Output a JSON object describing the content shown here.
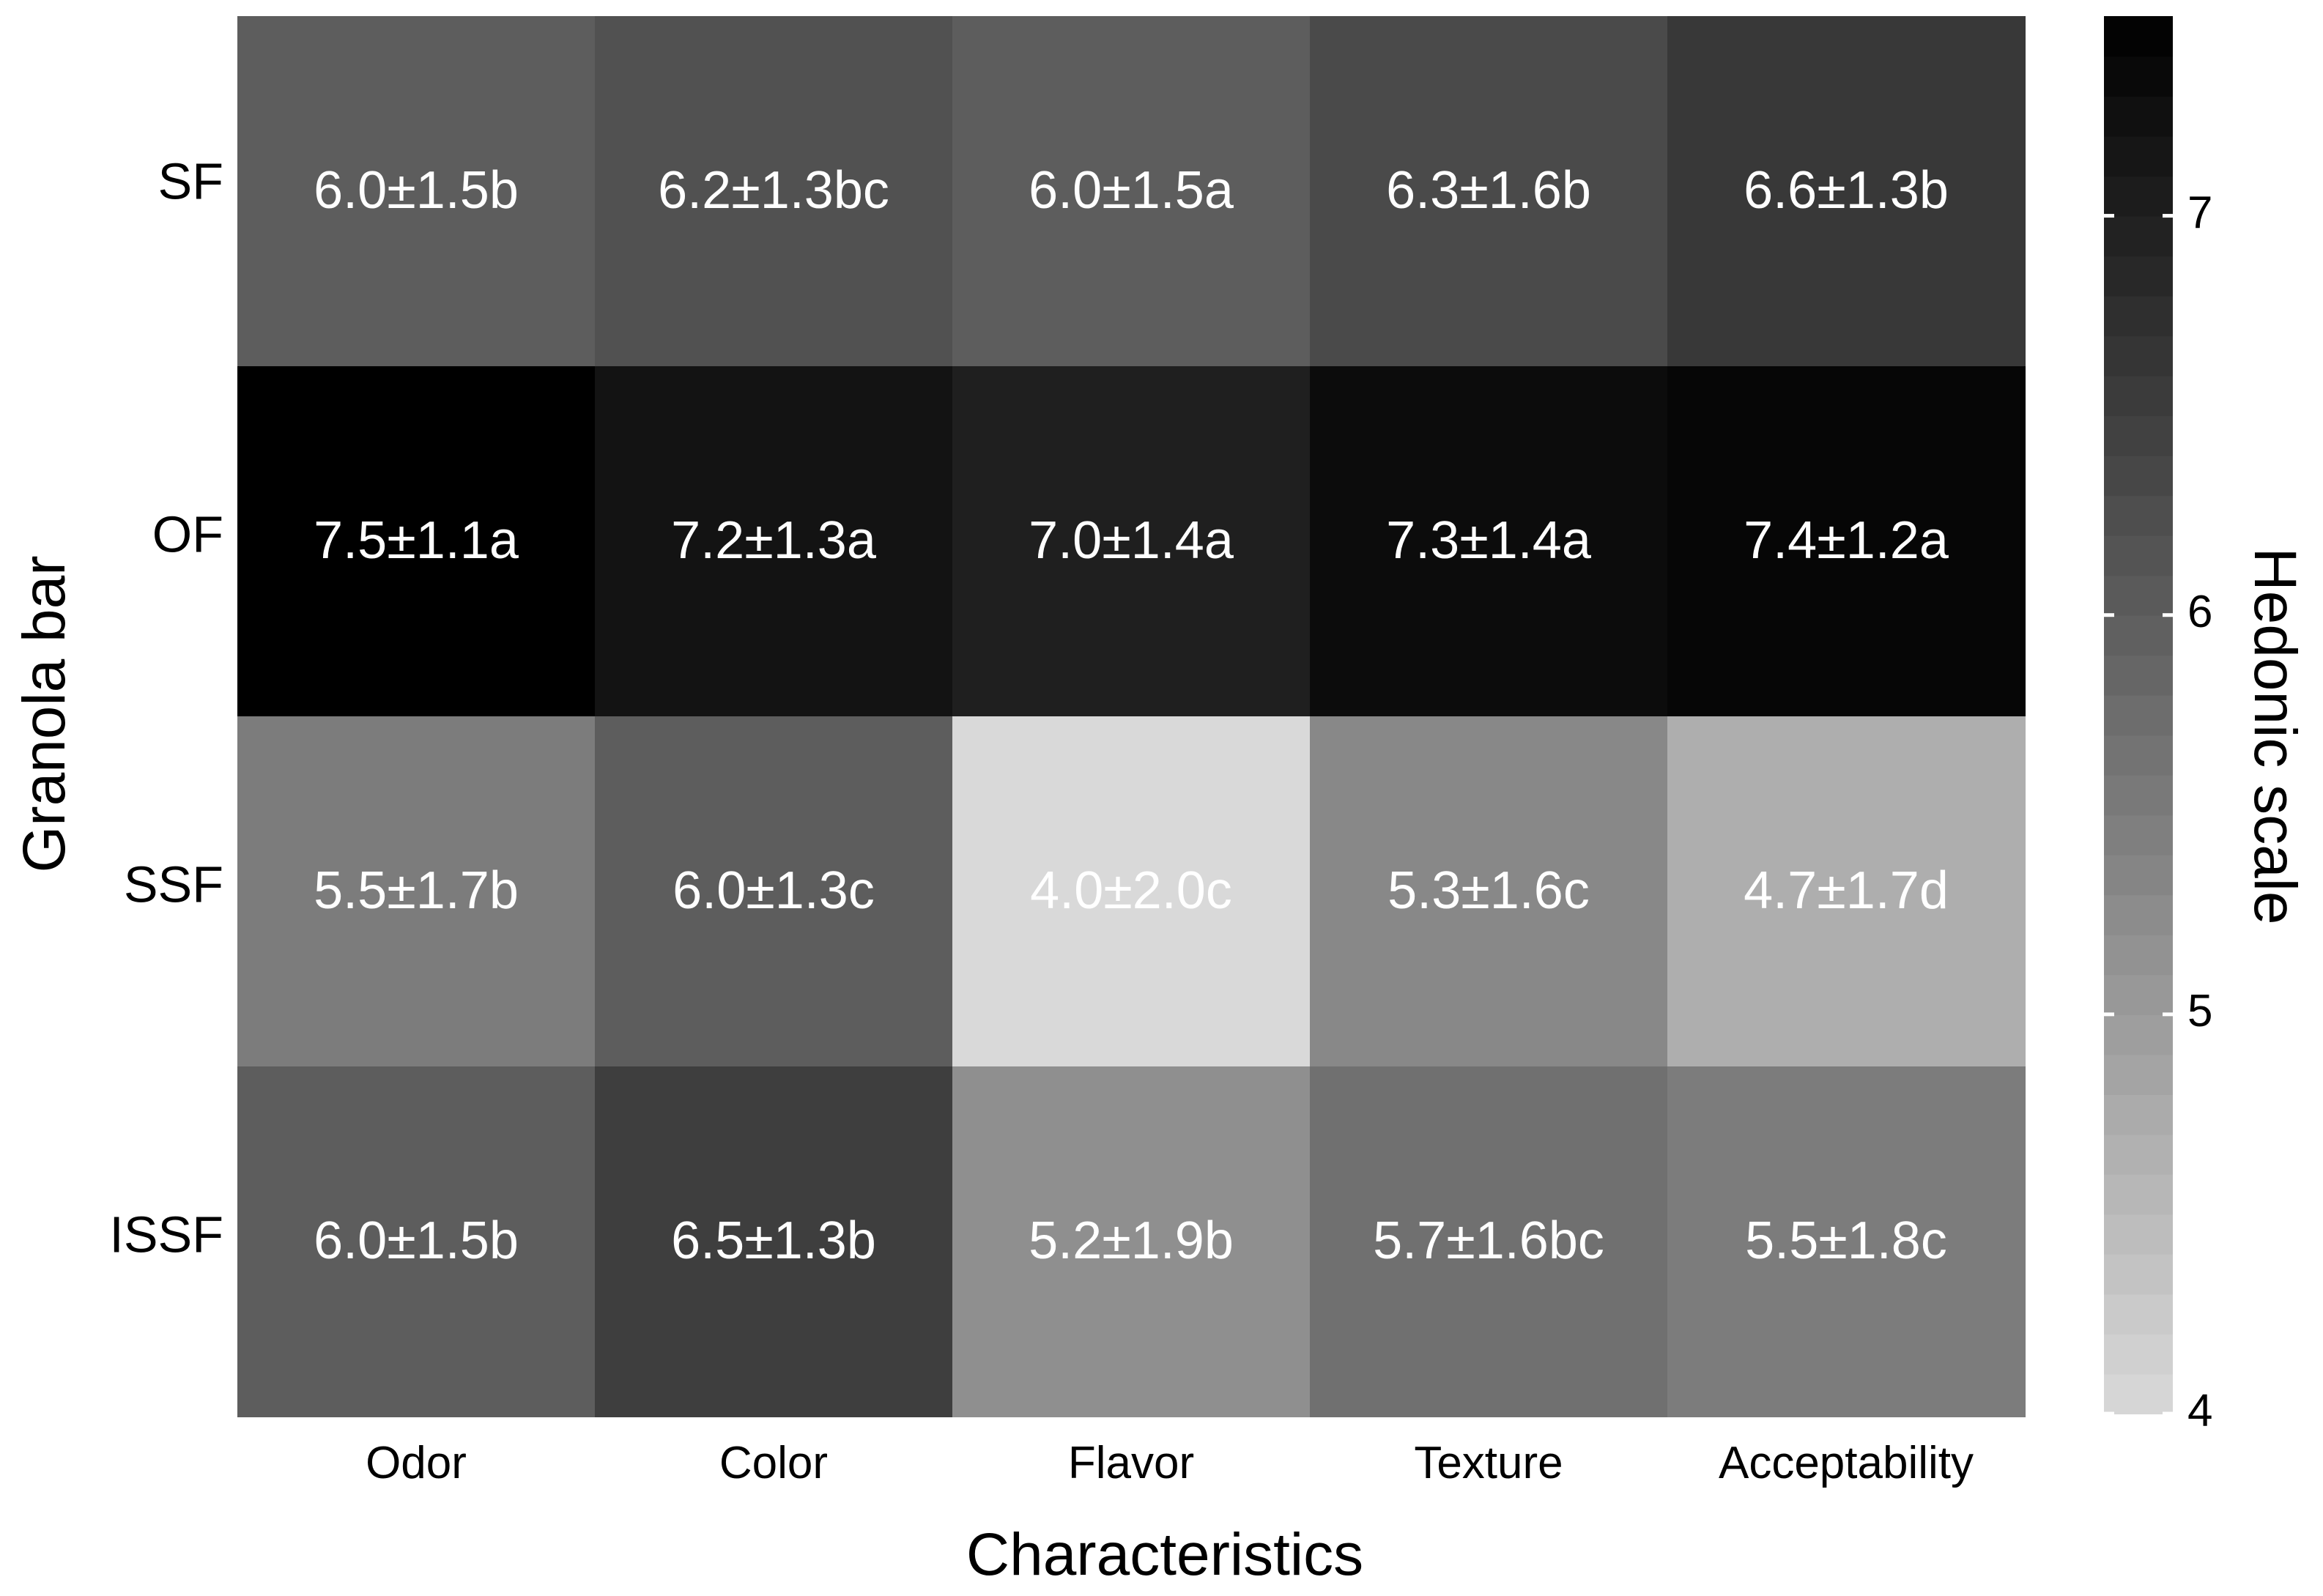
{
  "chart_data": {
    "type": "heatmap",
    "xlabel": "Characteristics",
    "ylabel": "Granola bar",
    "columns": [
      "Odor",
      "Color",
      "Flavor",
      "Texture",
      "Acceptability"
    ],
    "rows": [
      "SF",
      "OF",
      "SSF",
      "ISSF"
    ],
    "values": [
      [
        6.0,
        6.2,
        6.0,
        6.3,
        6.6
      ],
      [
        7.5,
        7.2,
        7.0,
        7.3,
        7.4
      ],
      [
        5.5,
        6.0,
        4.0,
        5.3,
        4.7
      ],
      [
        6.0,
        6.5,
        5.2,
        5.7,
        5.5
      ]
    ],
    "cell_labels": [
      [
        "6.0±1.5b",
        "6.2±1.3bc",
        "6.0±1.5a",
        "6.3±1.6b",
        "6.6±1.3b"
      ],
      [
        "7.5±1.1a",
        "7.2±1.3a",
        "7.0±1.4a",
        "7.3±1.4a",
        "7.4±1.2a"
      ],
      [
        "5.5±1.7b",
        "6.0±1.3c",
        "4.0±2.0c",
        "5.3±1.6c",
        "4.7±1.7d"
      ],
      [
        "6.0±1.5b",
        "6.5±1.3b",
        "5.2±1.9b",
        "5.7±1.6bc",
        "5.5±1.8c"
      ]
    ],
    "colorbar": {
      "title": "Hedonic scale",
      "range": [
        4,
        7.5
      ],
      "ticks": [
        "4",
        "5",
        "6",
        "7"
      ],
      "tick_values": [
        4,
        5,
        6,
        7
      ],
      "low_color": "#d9d9d9",
      "high_color": "#000000"
    },
    "grid": false
  }
}
